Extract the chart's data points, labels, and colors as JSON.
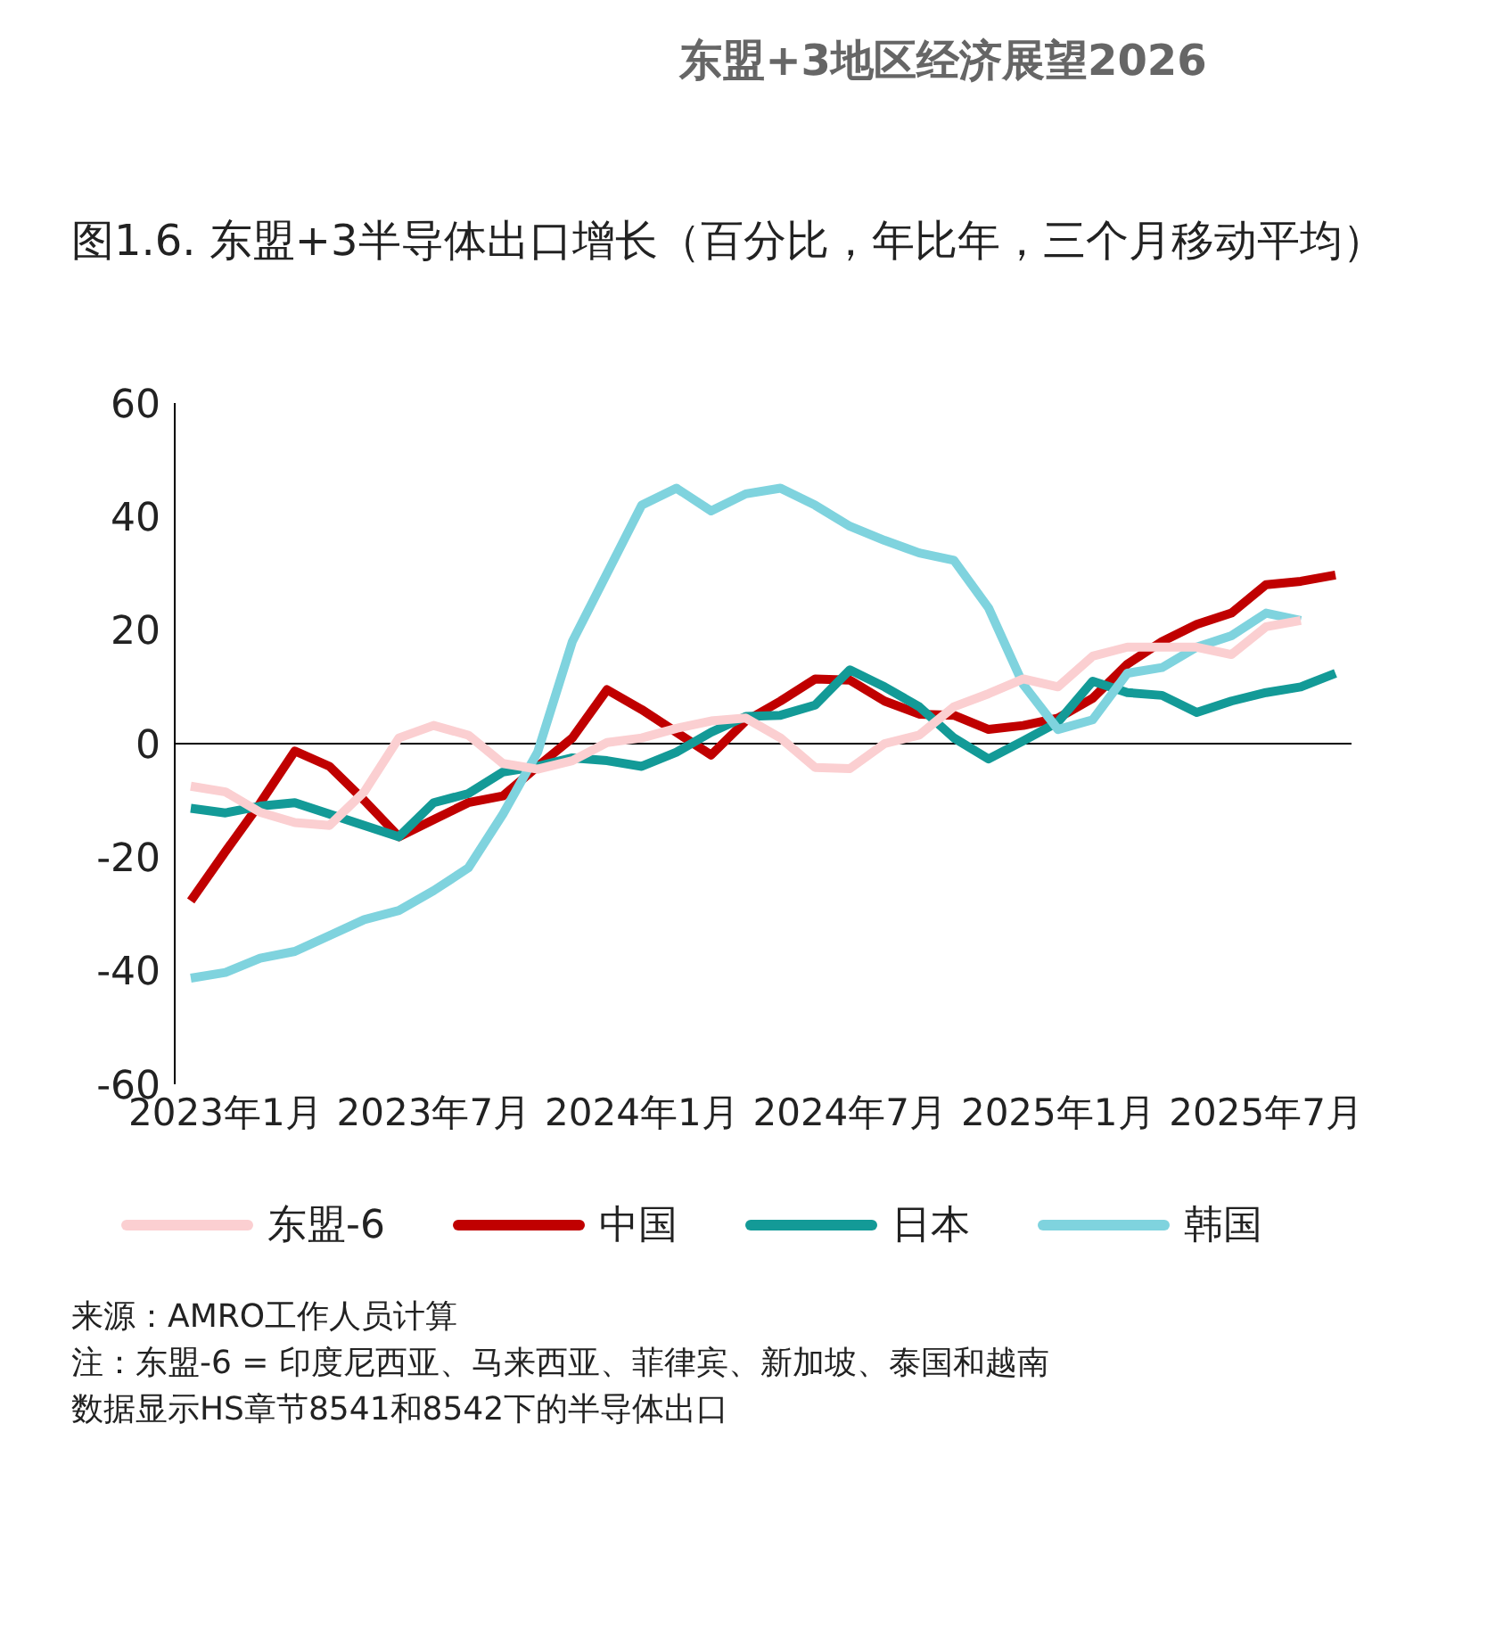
{
  "chart_data": {
    "type": "line",
    "title": "东盟+3地区经济展望2026",
    "subtitle": "图1.6. 东盟+3半导体出口增长（百分比，年比年，三个月移动平均）",
    "categories": [
      null,
      "2023年1月",
      null,
      null,
      null,
      null,
      null,
      "2023年7月",
      null,
      null,
      null,
      null,
      null,
      "2024年1月",
      null,
      null,
      null,
      null,
      null,
      "2024年7月",
      null,
      null,
      null,
      null,
      null,
      "2025年1月",
      null,
      null,
      null,
      null,
      null,
      "2025年7月",
      null,
      null
    ],
    "series": [
      {
        "name": "中国",
        "color": "#c00000",
        "values": [
          -27.7,
          -19,
          -10.5,
          -1.3,
          -4,
          -10,
          -16.4,
          -13.4,
          -10.4,
          -9.2,
          -4,
          1,
          9.5,
          6,
          2,
          -2,
          4,
          7.5,
          11.4,
          11.2,
          7.5,
          5.2,
          5,
          2.5,
          3.2,
          4.5,
          8,
          14,
          18,
          21,
          23,
          28,
          28.6,
          29.7
        ]
      },
      {
        "name": "日本",
        "color": "#139a97",
        "values": [
          -11.4,
          -12.2,
          -11,
          -10.4,
          -12.4,
          -14.4,
          -16.4,
          -10.4,
          -8.8,
          -5,
          -4,
          -2.5,
          -3,
          -4,
          -1.5,
          2,
          4.8,
          5,
          6.8,
          13,
          10,
          6.5,
          1,
          -2.7,
          0.5,
          3.8,
          11,
          9,
          8.5,
          5.5,
          7.5,
          9,
          10,
          12.4
        ]
      },
      {
        "name": "韩国",
        "color": "#7fd3de",
        "values": [
          -41.3,
          -40.3,
          -37.8,
          -36.6,
          -33.8,
          -31,
          -29.4,
          -25.9,
          -21.9,
          -12.4,
          -1.5,
          18,
          30,
          42,
          45,
          41,
          44,
          45,
          42,
          38.3,
          35.8,
          33.6,
          32.3,
          23.9,
          10.4,
          2.5,
          4.2,
          12.4,
          13.4,
          17,
          19,
          23,
          21.7,
          null
        ]
      },
      {
        "name": "东盟-6",
        "color": "#fbcfd1",
        "values": [
          -7.5,
          -8.5,
          -12.1,
          -13.9,
          -14.4,
          -8.5,
          1,
          3.2,
          1.5,
          -3.5,
          -4.5,
          -3,
          0.2,
          1,
          2.7,
          4,
          4.5,
          1,
          -4.2,
          -4.4,
          0,
          1.5,
          6.5,
          8.8,
          11.4,
          10,
          15.4,
          17,
          17,
          17,
          15.7,
          20.6,
          21.7,
          null
        ]
      }
    ],
    "ylim": [
      -60,
      60
    ],
    "yticks": [
      -60,
      -40,
      -20,
      0,
      20,
      40,
      60
    ],
    "marker": "none",
    "legend": "bottom",
    "ref_lines": [
      {
        "axis": "y",
        "value": 0,
        "color": "#000000"
      }
    ],
    "annotations": [
      "来源：AMRO工作人员计算",
      "注：东盟-6 = 印度尼西亚、马来西亚、菲律宾、新加坡、泰国和越南",
      "数据显示HS章节8541和8542下的半导体出口"
    ]
  }
}
